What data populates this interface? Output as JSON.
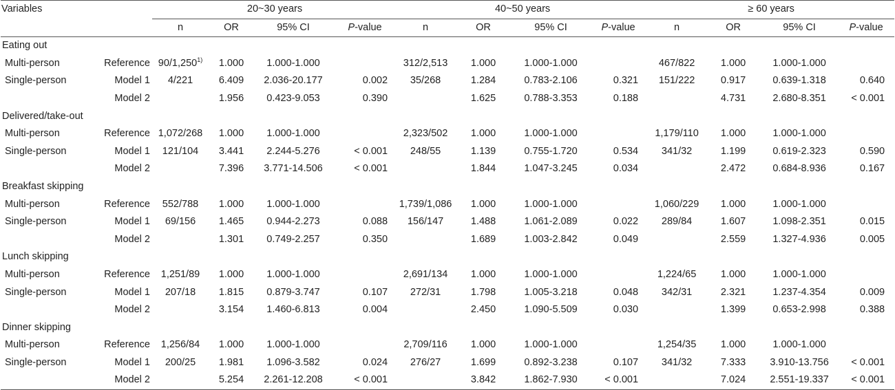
{
  "header": {
    "variables": "Variables",
    "groups": [
      "20~30 years",
      "40~50 years",
      "≥ 60 years"
    ],
    "subheads": {
      "n": "n",
      "or": "OR",
      "ci": "95% CI",
      "p_italic": "P",
      "p_rest": "-value"
    },
    "footnote_marker": "1)"
  },
  "sections": [
    {
      "title": "Eating out",
      "rows": [
        {
          "group": "Multi-person",
          "model": "Reference",
          "cells": [
            [
              "90/1,250",
              "1.000",
              "1.000-1.000",
              ""
            ],
            [
              "312/2,513",
              "1.000",
              "1.000-1.000",
              ""
            ],
            [
              "467/822",
              "1.000",
              "1.000-1.000",
              ""
            ]
          ]
        },
        {
          "group": "Single-person",
          "model": "Model 1",
          "cells": [
            [
              "4/221",
              "6.409",
              "2.036-20.177",
              "0.002"
            ],
            [
              "35/268",
              "1.284",
              "0.783-2.106",
              "0.321"
            ],
            [
              "151/222",
              "0.917",
              "0.639-1.318",
              "0.640"
            ]
          ]
        },
        {
          "group": "",
          "model": "Model 2",
          "cells": [
            [
              "",
              "1.956",
              "0.423-9.053",
              "0.390"
            ],
            [
              "",
              "1.625",
              "0.788-3.353",
              "0.188"
            ],
            [
              "",
              "4.731",
              "2.680-8.351",
              "< 0.001"
            ]
          ]
        }
      ]
    },
    {
      "title": "Delivered/take-out",
      "rows": [
        {
          "group": "Multi-person",
          "model": "Reference",
          "cells": [
            [
              "1,072/268",
              "1.000",
              "1.000-1.000",
              ""
            ],
            [
              "2,323/502",
              "1.000",
              "1.000-1.000",
              ""
            ],
            [
              "1,179/110",
              "1.000",
              "1.000-1.000",
              ""
            ]
          ]
        },
        {
          "group": "Single-person",
          "model": "Model 1",
          "cells": [
            [
              "121/104",
              "3.441",
              "2.244-5.276",
              "< 0.001"
            ],
            [
              "248/55",
              "1.139",
              "0.755-1.720",
              "0.534"
            ],
            [
              "341/32",
              "1.199",
              "0.619-2.323",
              "0.590"
            ]
          ]
        },
        {
          "group": "",
          "model": "Model 2",
          "cells": [
            [
              "",
              "7.396",
              "3.771-14.506",
              "< 0.001"
            ],
            [
              "",
              "1.844",
              "1.047-3.245",
              "0.034"
            ],
            [
              "",
              "2.472",
              "0.684-8.936",
              "0.167"
            ]
          ]
        }
      ]
    },
    {
      "title": "Breakfast skipping",
      "rows": [
        {
          "group": "Multi-person",
          "model": "Reference",
          "cells": [
            [
              "552/788",
              "1.000",
              "1.000-1.000",
              ""
            ],
            [
              "1,739/1,086",
              "1.000",
              "1.000-1.000",
              ""
            ],
            [
              "1,060/229",
              "1.000",
              "1.000-1.000",
              ""
            ]
          ]
        },
        {
          "group": "Single-person",
          "model": "Model 1",
          "cells": [
            [
              "69/156",
              "1.465",
              "0.944-2.273",
              "0.088"
            ],
            [
              "156/147",
              "1.488",
              "1.061-2.089",
              "0.022"
            ],
            [
              "289/84",
              "1.607",
              "1.098-2.351",
              "0.015"
            ]
          ]
        },
        {
          "group": "",
          "model": "Model 2",
          "cells": [
            [
              "",
              "1.301",
              "0.749-2.257",
              "0.350"
            ],
            [
              "",
              "1.689",
              "1.003-2.842",
              "0.049"
            ],
            [
              "",
              "2.559",
              "1.327-4.936",
              "0.005"
            ]
          ]
        }
      ]
    },
    {
      "title": "Lunch skipping",
      "rows": [
        {
          "group": "Multi-person",
          "model": "Reference",
          "cells": [
            [
              "1,251/89",
              "1.000",
              "1.000-1.000",
              ""
            ],
            [
              "2,691/134",
              "1.000",
              "1.000-1.000",
              ""
            ],
            [
              "1,224/65",
              "1.000",
              "1.000-1.000",
              ""
            ]
          ]
        },
        {
          "group": "Single-person",
          "model": "Model 1",
          "cells": [
            [
              "207/18",
              "1.815",
              "0.879-3.747",
              "0.107"
            ],
            [
              "272/31",
              "1.798",
              "1.005-3.218",
              "0.048"
            ],
            [
              "342/31",
              "2.321",
              "1.237-4.354",
              "0.009"
            ]
          ]
        },
        {
          "group": "",
          "model": "Model 2",
          "cells": [
            [
              "",
              "3.154",
              "1.460-6.813",
              "0.004"
            ],
            [
              "",
              "2.450",
              "1.090-5.509",
              "0.030"
            ],
            [
              "",
              "1.399",
              "0.653-2.998",
              "0.388"
            ]
          ]
        }
      ]
    },
    {
      "title": "Dinner skipping",
      "rows": [
        {
          "group": "Multi-person",
          "model": "Reference",
          "cells": [
            [
              "1,256/84",
              "1.000",
              "1.000-1.000",
              ""
            ],
            [
              "2,709/116",
              "1.000",
              "1.000-1.000",
              ""
            ],
            [
              "1,254/35",
              "1.000",
              "1.000-1.000",
              ""
            ]
          ]
        },
        {
          "group": "Single-person",
          "model": "Model 1",
          "cells": [
            [
              "200/25",
              "1.981",
              "1.096-3.582",
              "0.024"
            ],
            [
              "276/27",
              "1.699",
              "0.892-3.238",
              "0.107"
            ],
            [
              "341/32",
              "7.333",
              "3.910-13.756",
              "< 0.001"
            ]
          ]
        },
        {
          "group": "",
          "model": "Model 2",
          "cells": [
            [
              "",
              "5.254",
              "2.261-12.208",
              "< 0.001"
            ],
            [
              "",
              "3.842",
              "1.862-7.930",
              "< 0.001"
            ],
            [
              "",
              "7.024",
              "2.551-19.337",
              "< 0.001"
            ]
          ]
        }
      ]
    }
  ]
}
